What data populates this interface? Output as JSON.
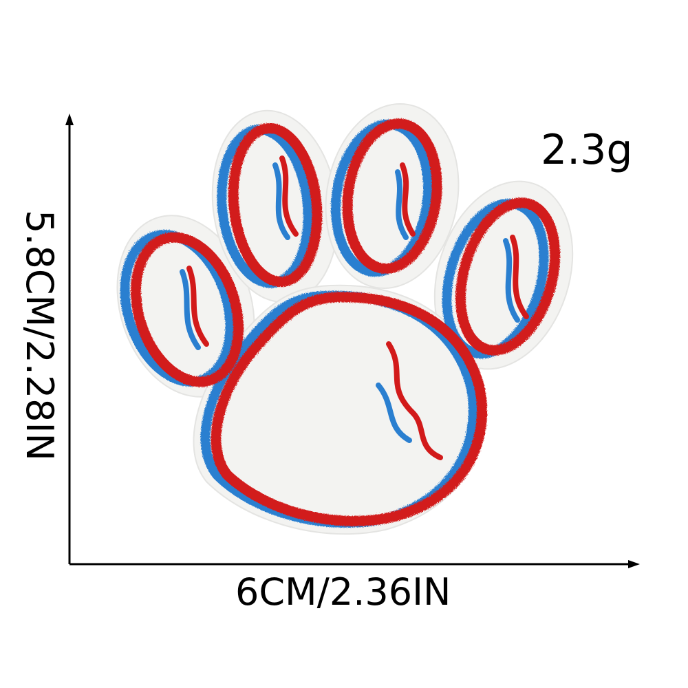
{
  "product": {
    "weight": "2.3g",
    "width": "6CM/2.36IN",
    "height": "5.8CM/2.28IN"
  },
  "colors": {
    "outline_red": "#d21a1a",
    "outline_blue": "#2a7fd0",
    "fill_white": "#ffffff",
    "base_white": "#f4f4f2",
    "axis": "#000000"
  },
  "icons": {
    "patch": "paw-print-patch-icon",
    "arrows": "dimension-arrow-icon"
  }
}
